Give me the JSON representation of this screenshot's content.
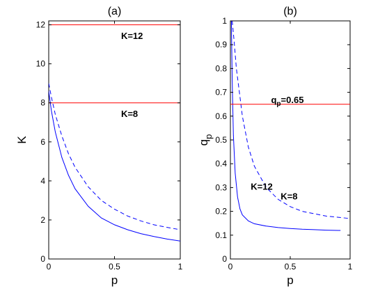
{
  "chart_data": [
    {
      "type": "line",
      "title": "(a)",
      "xlabel": "p",
      "ylabel": "K",
      "xlim": [
        0,
        1
      ],
      "ylim": [
        0,
        12.2
      ],
      "xticks": [
        "0",
        "0.5",
        "1"
      ],
      "yticks": [
        "0",
        "2",
        "4",
        "6",
        "8",
        "10",
        "12"
      ],
      "grid": false,
      "series": [
        {
          "style": "solid",
          "color": "#0000ff",
          "x": [
            0.0,
            0.02,
            0.05,
            0.1,
            0.15,
            0.2,
            0.3,
            0.4,
            0.5,
            0.6,
            0.7,
            0.8,
            0.9,
            1.0
          ],
          "y": [
            8.6,
            7.6,
            6.5,
            5.2,
            4.3,
            3.6,
            2.7,
            2.1,
            1.75,
            1.5,
            1.3,
            1.15,
            1.02,
            0.92
          ]
        },
        {
          "style": "dashed",
          "color": "#0000ff",
          "x": [
            0.0,
            0.02,
            0.05,
            0.1,
            0.15,
            0.2,
            0.3,
            0.4,
            0.5,
            0.6,
            0.7,
            0.8,
            0.9,
            1.0
          ],
          "y": [
            9.0,
            8.3,
            7.4,
            6.3,
            5.4,
            4.7,
            3.7,
            3.0,
            2.55,
            2.2,
            1.95,
            1.75,
            1.62,
            1.5
          ]
        }
      ],
      "hlines": [
        {
          "y": 12,
          "color": "#ff0000",
          "label": "K=12",
          "label_x": 0.55,
          "label_y": 11.45
        },
        {
          "y": 8,
          "color": "#ff0000",
          "label": "K=8",
          "label_x": 0.55,
          "label_y": 7.45
        }
      ]
    },
    {
      "type": "line",
      "title": "(b)",
      "xlabel": "p",
      "ylabel": "q",
      "ylabel_sub": "p",
      "xlim": [
        0,
        1
      ],
      "ylim": [
        0,
        1
      ],
      "xticks": [
        "0",
        "0.5",
        "1"
      ],
      "yticks": [
        "0",
        "0.1",
        "0.2",
        "0.3",
        "0.4",
        "0.5",
        "0.6",
        "0.7",
        "0.8",
        "0.9",
        "1"
      ],
      "grid": false,
      "series": [
        {
          "style": "dashed",
          "color": "#0000ff",
          "x": [
            0.015,
            0.03,
            0.05,
            0.08,
            0.1,
            0.15,
            0.2,
            0.3,
            0.4,
            0.5,
            0.6,
            0.7,
            0.8,
            0.9,
            1.0
          ],
          "y": [
            1.0,
            0.92,
            0.8,
            0.68,
            0.6,
            0.47,
            0.39,
            0.3,
            0.25,
            0.22,
            0.2,
            0.19,
            0.18,
            0.175,
            0.17
          ]
        },
        {
          "style": "solid",
          "color": "#0000ff",
          "x": [
            0.008,
            0.015,
            0.025,
            0.04,
            0.06,
            0.08,
            0.1,
            0.15,
            0.2,
            0.3,
            0.4,
            0.5,
            0.6,
            0.7,
            0.8,
            0.9,
            0.92
          ],
          "y": [
            1.0,
            0.75,
            0.52,
            0.36,
            0.26,
            0.21,
            0.185,
            0.16,
            0.148,
            0.138,
            0.132,
            0.128,
            0.125,
            0.123,
            0.121,
            0.12,
            0.12
          ]
        }
      ],
      "hlines": [
        {
          "y": 0.65,
          "color": "#ff0000",
          "label": "q",
          "label_sub": "p",
          "label_rest": "=0.65",
          "label_x": 0.34,
          "label_y": 0.67
        }
      ],
      "annotations": [
        {
          "text": "K=8",
          "x": 0.42,
          "y": 0.265
        },
        {
          "text": "K=12",
          "x": 0.17,
          "y": 0.305
        }
      ]
    }
  ]
}
